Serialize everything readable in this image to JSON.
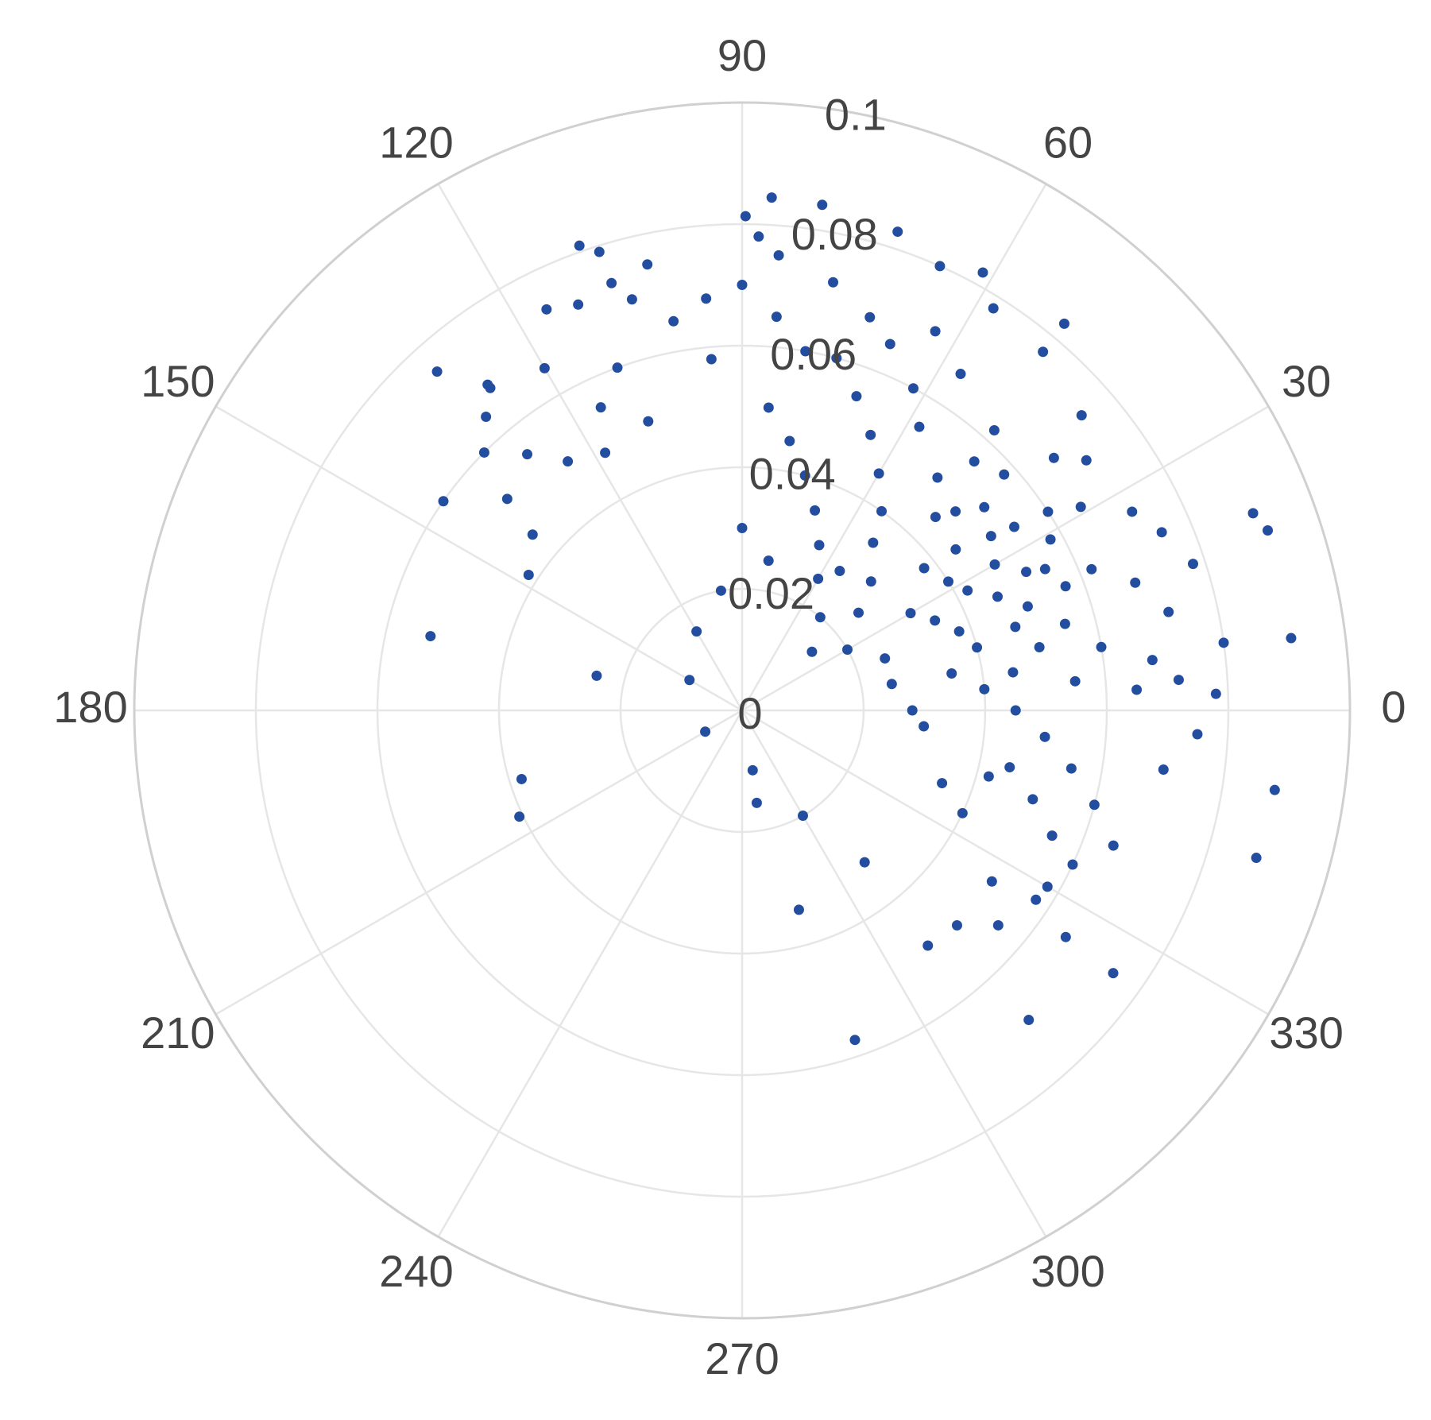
{
  "chart_data": {
    "type": "polar",
    "color": "#234ea0",
    "rlim": [
      0,
      0.1
    ],
    "rticks": [
      0,
      0.02,
      0.04,
      0.06,
      0.08,
      0.1
    ],
    "thetaticks": [
      0,
      30,
      60,
      90,
      120,
      150,
      180,
      210,
      240,
      270,
      300,
      330
    ],
    "grid": true,
    "theta": [
      86.7,
      89.6,
      81.0,
      72.0,
      109.3,
      107.3,
      85.4,
      107.0,
      116.0,
      128.0,
      131.1,
      166.6,
      147.6,
      166.6,
      197.3,
      205.5,
      209.9,
      279.0,
      285.9,
      288.9,
      308.3,
      312.8,
      324.7,
      344.0,
      351.5,
      7.5,
      18.9,
      21.1,
      50.2,
      61.2,
      327.2,
      325.6,
      308.9,
      35,
      30,
      40,
      25,
      45,
      33,
      28,
      38,
      20,
      50,
      42,
      31,
      22,
      15,
      55,
      48,
      36,
      27,
      18,
      10,
      12,
      8,
      5,
      3,
      60,
      58,
      65,
      62,
      70,
      75,
      68,
      80,
      85,
      90,
      95,
      100,
      105,
      110,
      115,
      120,
      125,
      130,
      140,
      135,
      45,
      55,
      40,
      30,
      25,
      20,
      15,
      10,
      5,
      0,
      355,
      350,
      345,
      340,
      352,
      357,
      2,
      348,
      343,
      338,
      335,
      330,
      325,
      320,
      315,
      335,
      340,
      345,
      355,
      0,
      70,
      65,
      75,
      80,
      85,
      60,
      50,
      40,
      30,
      20,
      10,
      80,
      90,
      100,
      120,
      150,
      300,
      280,
      37,
      34,
      29,
      24,
      43,
      47,
      39,
      26,
      32,
      21,
      17,
      52,
      57,
      63,
      72,
      78,
      88,
      95,
      102,
      112,
      108,
      118,
      128,
      132,
      145,
      138,
      13,
      7,
      4,
      23,
      41,
      50,
      58,
      66,
      18,
      8
    ],
    "r": [
      0.0845,
      0.0813,
      0.0842,
      0.0828,
      0.081,
      0.079,
      0.0751,
      0.0735,
      0.0734,
      0.0673,
      0.0641,
      0.0527,
      0.0416,
      0.0246,
      0.038,
      0.0406,
      0.007,
      0.0154,
      0.0341,
      0.0573,
      0.0493,
      0.0694,
      0.0748,
      0.088,
      0.0886,
      0.0911,
      0.0914,
      0.0901,
      0.0828,
      0.0822,
      0.0575,
      0.0498,
      0.0321,
      0.05,
      0.048,
      0.052,
      0.055,
      0.045,
      0.06,
      0.042,
      0.038,
      0.05,
      0.05,
      0.058,
      0.065,
      0.062,
      0.055,
      0.04,
      0.062,
      0.07,
      0.072,
      0.068,
      0.06,
      0.05,
      0.045,
      0.055,
      0.065,
      0.045,
      0.055,
      0.05,
      0.06,
      0.055,
      0.06,
      0.065,
      0.06,
      0.065,
      0.07,
      0.068,
      0.065,
      0.07,
      0.06,
      0.055,
      0.065,
      0.05,
      0.055,
      0.045,
      0.06,
      0.03,
      0.028,
      0.025,
      0.032,
      0.035,
      0.038,
      0.04,
      0.035,
      0.04,
      0.045,
      0.05,
      0.055,
      0.06,
      0.065,
      0.07,
      0.075,
      0.078,
      0.045,
      0.05,
      0.055,
      0.06,
      0.058,
      0.065,
      0.055,
      0.05,
      0.04,
      0.035,
      0.042,
      0.03,
      0.028,
      0.035,
      0.03,
      0.04,
      0.045,
      0.05,
      0.025,
      0.02,
      0.015,
      0.02,
      0.025,
      0.025,
      0.025,
      0.03,
      0.02,
      0.015,
      0.01,
      0.02,
      0.01,
      0.044,
      0.054,
      0.058,
      0.046,
      0.048,
      0.056,
      0.066,
      0.052,
      0.04,
      0.057,
      0.047,
      0.035,
      0.066,
      0.07,
      0.068,
      0.072,
      0.078,
      0.058,
      0.075,
      0.072,
      0.05,
      0.048,
      0.068,
      0.075,
      0.06,
      0.052,
      0.072,
      0.068,
      0.072,
      0.075,
      0.074,
      0.077,
      0.078,
      0.08,
      0.078,
      0.08
    ]
  }
}
